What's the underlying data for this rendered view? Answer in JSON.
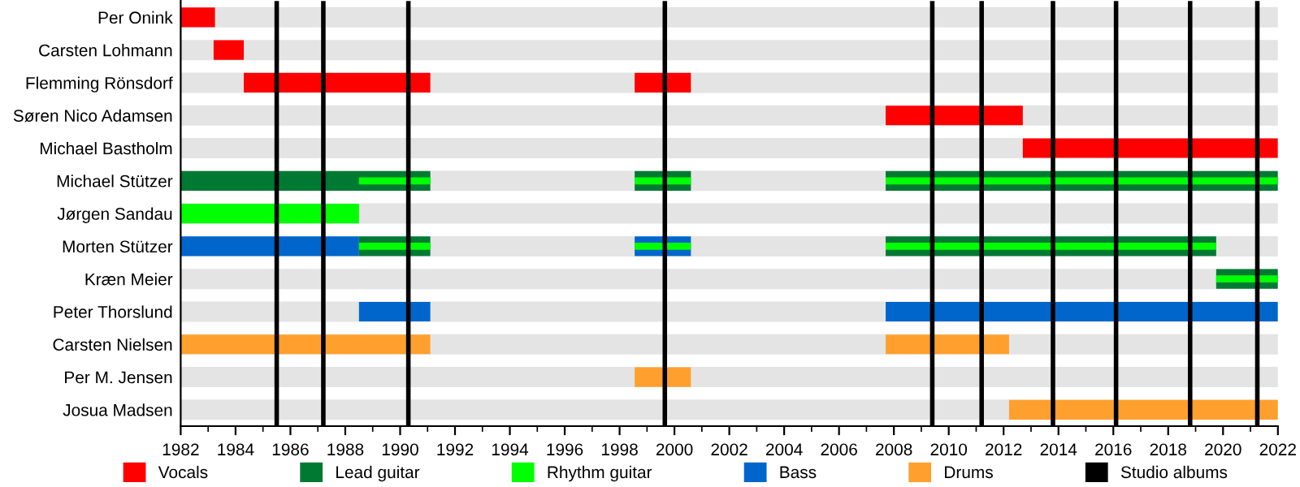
{
  "chart_data": {
    "type": "bar",
    "orientation": "horizontal",
    "categories": [
      "Per Onink",
      "Carsten Lohmann",
      "Flemming Rönsdorf",
      "Søren Nico Adamsen",
      "Michael Bastholm",
      "Michael Stützer",
      "Jørgen Sandau",
      "Morten Stützer",
      "Kræn Meier",
      "Peter Thorslund",
      "Carsten Nielsen",
      "Per M. Jensen",
      "Josua Madsen"
    ],
    "series": [
      {
        "name": "Vocals",
        "color": "#ff0000",
        "base": [
          1982,
          1983.2,
          1984.3,
          2007.7,
          2012.7,
          null,
          null,
          null,
          null,
          null,
          null,
          null,
          null
        ],
        "values": [
          1.25,
          1.1,
          6.8,
          5.0,
          9.3,
          null,
          null,
          null,
          null,
          null,
          null,
          null,
          null
        ]
      },
      {
        "color": "#ff0000",
        "base": [
          null,
          null,
          1998.55,
          null,
          null,
          null,
          null,
          null,
          null,
          null,
          null,
          null,
          null
        ],
        "values": [
          null,
          null,
          2.05,
          null,
          null,
          null,
          null,
          null,
          null,
          null,
          null,
          null,
          null
        ]
      },
      {
        "name": "Lead guitar",
        "color": "#007a33",
        "base": [
          null,
          null,
          null,
          null,
          null,
          1982,
          null,
          1988.5,
          2019.75,
          null,
          null,
          null,
          null
        ],
        "values": [
          null,
          null,
          null,
          null,
          null,
          9.1,
          null,
          2.6,
          2.25,
          null,
          null,
          null,
          null
        ]
      },
      {
        "color": "#007a33",
        "base": [
          null,
          null,
          null,
          null,
          null,
          1998.55,
          null,
          2007.7,
          null,
          null,
          null,
          null,
          null
        ],
        "values": [
          null,
          null,
          null,
          null,
          null,
          2.05,
          null,
          12.05,
          null,
          null,
          null,
          null,
          null
        ]
      },
      {
        "color": "#007a33",
        "base": [
          null,
          null,
          null,
          null,
          null,
          2007.7,
          null,
          null,
          null,
          null,
          null,
          null,
          null
        ],
        "values": [
          null,
          null,
          null,
          null,
          null,
          14.3,
          null,
          null,
          null,
          null,
          null,
          null,
          null
        ]
      },
      {
        "name": "Rhythm guitar",
        "color": "#00ff00",
        "base": [
          null,
          null,
          null,
          null,
          null,
          null,
          1982,
          null,
          null,
          null,
          null,
          null,
          null
        ],
        "values": [
          null,
          null,
          null,
          null,
          null,
          null,
          6.5,
          null,
          null,
          null,
          null,
          null,
          null
        ]
      },
      {
        "name": "Bass",
        "color": "#0066cc",
        "base": [
          null,
          null,
          null,
          null,
          null,
          null,
          null,
          1982,
          null,
          1988.5,
          null,
          null,
          null
        ],
        "values": [
          null,
          null,
          null,
          null,
          null,
          null,
          null,
          6.5,
          null,
          2.6,
          null,
          null,
          null
        ]
      },
      {
        "color": "#0066cc",
        "base": [
          null,
          null,
          null,
          null,
          null,
          null,
          null,
          1998.55,
          null,
          2007.7,
          null,
          null,
          null
        ],
        "values": [
          null,
          null,
          null,
          null,
          null,
          null,
          null,
          2.05,
          null,
          14.3,
          null,
          null,
          null
        ]
      },
      {
        "name": "Drums",
        "color": "#ffa02e",
        "base": [
          null,
          null,
          null,
          null,
          null,
          null,
          null,
          null,
          null,
          null,
          1982,
          1998.55,
          2012.2
        ],
        "values": [
          null,
          null,
          null,
          null,
          null,
          null,
          null,
          null,
          null,
          null,
          9.1,
          2.05,
          9.8
        ]
      },
      {
        "color": "#ffa02e",
        "base": [
          null,
          null,
          null,
          null,
          null,
          null,
          null,
          null,
          null,
          null,
          2007.7,
          null,
          null
        ],
        "values": [
          null,
          null,
          null,
          null,
          null,
          null,
          null,
          null,
          null,
          null,
          4.5,
          null,
          null
        ]
      },
      {
        "color": "#00ff00",
        "base": [
          null,
          null,
          null,
          null,
          null,
          1988.5,
          null,
          1988.5,
          2019.75,
          null,
          null,
          null,
          null
        ],
        "values": [
          null,
          null,
          null,
          null,
          null,
          2.6,
          null,
          2.6,
          2.25,
          null,
          null,
          null,
          null
        ]
      },
      {
        "color": "#00ff00",
        "base": [
          null,
          null,
          null,
          null,
          null,
          1998.55,
          null,
          1998.55,
          null,
          null,
          null,
          null,
          null
        ],
        "values": [
          null,
          null,
          null,
          null,
          null,
          2.05,
          null,
          2.05,
          null,
          null,
          null,
          null,
          null
        ]
      },
      {
        "color": "#00ff00",
        "base": [
          null,
          null,
          null,
          null,
          null,
          2007.7,
          null,
          2007.7,
          null,
          null,
          null,
          null,
          null
        ],
        "values": [
          null,
          null,
          null,
          null,
          null,
          14.3,
          null,
          12.05,
          null,
          null,
          null,
          null,
          null
        ]
      }
    ],
    "ref_lines": [
      {
        "axis": "x",
        "value": 1985.5,
        "label": "Studio albums",
        "color": "#000000"
      },
      {
        "axis": "x",
        "value": 1987.2,
        "color": "#000000"
      },
      {
        "axis": "x",
        "value": 1990.3,
        "color": "#000000"
      },
      {
        "axis": "x",
        "value": 1999.65,
        "color": "#000000"
      },
      {
        "axis": "x",
        "value": 2009.4,
        "color": "#000000"
      },
      {
        "axis": "x",
        "value": 2011.2,
        "color": "#000000"
      },
      {
        "axis": "x",
        "value": 2013.8,
        "color": "#000000"
      },
      {
        "axis": "x",
        "value": 2016.1,
        "color": "#000000"
      },
      {
        "axis": "x",
        "value": 2018.8,
        "color": "#000000"
      },
      {
        "axis": "x",
        "value": 2021.25,
        "color": "#000000"
      }
    ],
    "xlim": [
      1982,
      2022
    ],
    "xticks": [
      1982,
      1984,
      1986,
      1988,
      1990,
      1992,
      1994,
      1996,
      1998,
      2000,
      2002,
      2004,
      2006,
      2008,
      2010,
      2012,
      2014,
      2016,
      2018,
      2020,
      2022
    ],
    "grid": "y",
    "legend": "bottom"
  }
}
